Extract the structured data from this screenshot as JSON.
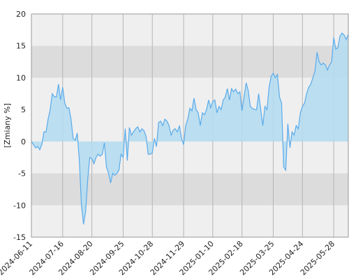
{
  "chart_data": {
    "type": "area",
    "y_label": "[Zmiany %]",
    "categories": [
      "2024-06-11",
      null,
      null,
      null,
      null,
      null,
      null,
      null,
      null,
      null,
      null,
      null,
      null,
      null,
      null,
      "2024-07-16",
      null,
      null,
      null,
      null,
      null,
      null,
      null,
      null,
      null,
      null,
      null,
      null,
      null,
      "2024-08-20",
      null,
      null,
      null,
      null,
      null,
      null,
      null,
      null,
      null,
      null,
      null,
      null,
      null,
      null,
      "2024-09-25",
      null,
      null,
      null,
      null,
      null,
      null,
      null,
      null,
      null,
      null,
      null,
      null,
      null,
      "2024-10-28",
      null,
      null,
      null,
      null,
      null,
      null,
      null,
      null,
      null,
      null,
      null,
      null,
      null,
      null,
      "2024-11-29",
      null,
      null,
      null,
      null,
      null,
      null,
      null,
      null,
      null,
      null,
      null,
      null,
      null,
      "2025-01-10",
      null,
      null,
      null,
      null,
      null,
      null,
      null,
      null,
      null,
      null,
      null,
      null,
      null,
      "2025-02-18",
      null,
      null,
      null,
      null,
      null,
      null,
      null,
      null,
      null,
      null,
      null,
      null,
      null,
      null,
      "2025-03-25",
      null,
      null,
      null,
      null,
      null,
      null,
      null,
      null,
      null,
      null,
      null,
      null,
      null,
      "2025-04-24",
      null,
      null,
      null,
      null,
      null,
      null,
      null,
      null,
      null,
      null,
      null,
      null,
      null,
      null,
      "2025-05-28",
      null,
      null,
      null,
      null,
      null,
      null,
      null
    ],
    "values": [
      0,
      -0.5,
      -1,
      -0.8,
      -1.3,
      -0.5,
      1.5,
      1.5,
      3.5,
      5,
      7.5,
      7,
      7,
      9,
      6.5,
      8.5,
      6,
      5.2,
      5.3,
      3.5,
      0.5,
      0.2,
      1.3,
      -3,
      -10,
      -13,
      -11,
      -6,
      -2.5,
      -2.7,
      -3.5,
      -2.5,
      -2,
      -2.3,
      -2,
      -0.2,
      -4,
      -5,
      -6.5,
      -5,
      -5.3,
      -5,
      -4.5,
      -2,
      -2.5,
      2,
      -3,
      2.2,
      1,
      1.5,
      2,
      2.3,
      1.5,
      2,
      1.7,
      0.8,
      -2,
      -2,
      -1.8,
      0.5,
      -0.8,
      3,
      3.2,
      2.5,
      3.5,
      3.2,
      2.5,
      1,
      1.8,
      2,
      1.5,
      2.5,
      0.5,
      -0.5,
      2.5,
      3.5,
      5.2,
      4.8,
      6.8,
      5,
      4.5,
      2.5,
      4.5,
      4.2,
      5,
      6.5,
      5.3,
      6.3,
      6.5,
      4.5,
      5.5,
      5,
      6.5,
      7,
      8.3,
      6.5,
      8.3,
      7.8,
      8.2,
      7.5,
      7.8,
      4.8,
      7,
      9.2,
      8,
      5.5,
      5.2,
      5,
      5,
      7.5,
      5,
      2.5,
      5.5,
      5,
      8.5,
      10.2,
      10.7,
      10,
      10.5,
      7,
      6,
      -4,
      -4.5,
      2.8,
      -1,
      1.5,
      1,
      2.5,
      2,
      4.5,
      5.5,
      6,
      7.5,
      8.5,
      9,
      10,
      11,
      14,
      12.5,
      12,
      12.3,
      12,
      11.2,
      12,
      12.5,
      16.3,
      14.5,
      14.7,
      16.5,
      17,
      16.7,
      16,
      16.8
    ],
    "color": "#5aabeb",
    "fill_color": "#b5dcf0",
    "ylim": [
      -15,
      20
    ],
    "yticks": [
      -15,
      -10,
      -5,
      0,
      5,
      10,
      15,
      20
    ],
    "shaded_bands": [
      [
        10,
        15
      ],
      [
        -10,
        -5
      ]
    ],
    "grid": true
  }
}
